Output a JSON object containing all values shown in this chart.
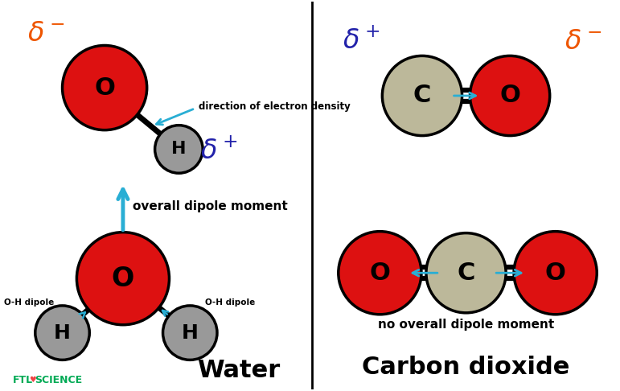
{
  "bg_color": "#ffffff",
  "red_color": "#dd1111",
  "gray_color": "#999999",
  "carbon_color": "#bcb89a",
  "black_color": "#000000",
  "cyan_color": "#29aed4",
  "orange_color": "#ee5500",
  "blue_color": "#2222aa",
  "water_title": "Water",
  "co2_title": "Carbon dioxide",
  "no_dipole_text": "no overall dipole moment",
  "overall_dipole_text": "overall dipole moment",
  "direction_text": "direction of electron density",
  "oh_dipole_text": "O-H dipole",
  "ftlo_green": "#00aa55",
  "ftlo_orange": "#ee5500"
}
